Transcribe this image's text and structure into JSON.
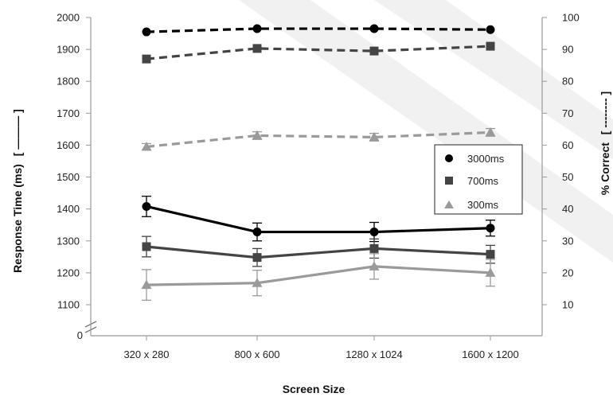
{
  "chart_data": {
    "type": "line",
    "categories": [
      "320 x 280",
      "800 x 600",
      "1280 x 1024",
      "1600 x 1200"
    ],
    "xlabel": "Screen Size",
    "ylabel_left": "Response Time (ms)",
    "ylabel_left_suffix": "[ ——— ]",
    "ylabel_right": "% Correct",
    "ylabel_right_suffix": "[ -------- ]",
    "left_axis": {
      "ticks": [
        2000,
        1900,
        1800,
        1700,
        1600,
        1500,
        1400,
        1300,
        1200,
        1100
      ],
      "ylim": [
        1050,
        2000
      ],
      "zero_label": "0",
      "axis_break": true
    },
    "right_axis": {
      "ticks": [
        100,
        90,
        80,
        70,
        60,
        50,
        40,
        30,
        20,
        10
      ],
      "ylim": [
        0,
        100
      ]
    },
    "grid": false,
    "legend": {
      "position": "right-middle",
      "entries": [
        {
          "label": "3000ms",
          "marker": "circle",
          "color": "#000000"
        },
        {
          "label": "700ms",
          "marker": "square",
          "color": "#444444"
        },
        {
          "label": "300ms",
          "marker": "triangle",
          "color": "#9a9a9a"
        }
      ]
    },
    "series": [
      {
        "name": "3000ms",
        "measure": "accuracy",
        "axis": "right",
        "style": "dashed",
        "color": "#000000",
        "marker": "circle",
        "values": [
          95.5,
          96.5,
          96.5,
          96.2
        ],
        "errors": [
          0,
          0,
          0,
          0
        ]
      },
      {
        "name": "700ms",
        "measure": "accuracy",
        "axis": "right",
        "style": "dashed",
        "color": "#444444",
        "marker": "square",
        "values": [
          87,
          90.3,
          89.5,
          91
        ],
        "errors": [
          0,
          0,
          0,
          0
        ]
      },
      {
        "name": "300ms",
        "measure": "accuracy",
        "axis": "right",
        "style": "dashed",
        "color": "#9a9a9a",
        "marker": "triangle",
        "values": [
          59.5,
          63,
          62.5,
          64
        ],
        "errors": [
          1,
          1.2,
          1.2,
          1.2
        ]
      },
      {
        "name": "3000ms",
        "measure": "response_time",
        "axis": "left",
        "style": "solid",
        "color": "#000000",
        "marker": "circle",
        "values": [
          1408,
          1328,
          1328,
          1340
        ],
        "errors": [
          32,
          28,
          30,
          25
        ]
      },
      {
        "name": "700ms",
        "measure": "response_time",
        "axis": "left",
        "style": "solid",
        "color": "#444444",
        "marker": "square",
        "values": [
          1282,
          1248,
          1276,
          1258
        ],
        "errors": [
          32,
          28,
          30,
          28
        ]
      },
      {
        "name": "300ms",
        "measure": "response_time",
        "axis": "left",
        "style": "solid",
        "color": "#9a9a9a",
        "marker": "triangle",
        "values": [
          1162,
          1168,
          1220,
          1200
        ],
        "errors": [
          48,
          40,
          40,
          42
        ]
      }
    ]
  }
}
